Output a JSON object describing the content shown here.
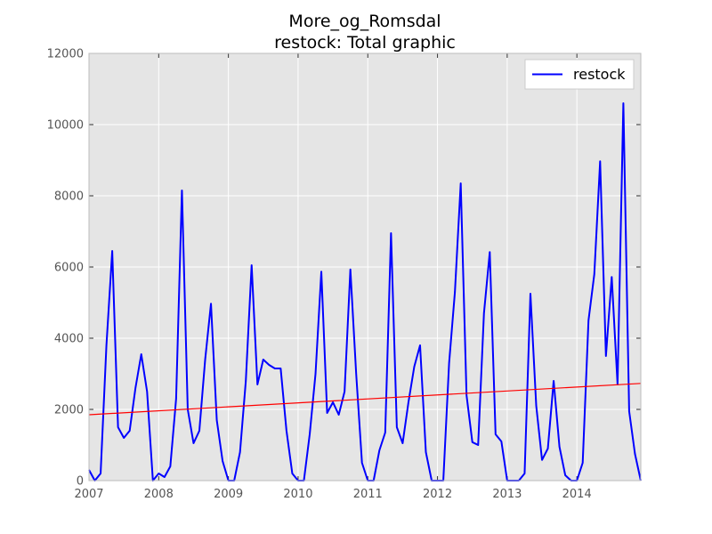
{
  "chart_data": {
    "type": "line",
    "title_lines": [
      "More_og_Romsdal",
      "restock: Total graphic"
    ],
    "xlabel": "",
    "ylabel": "",
    "xlim": [
      2007.0,
      2014.917
    ],
    "ylim": [
      0,
      12000
    ],
    "x_ticks": [
      2007,
      2008,
      2009,
      2010,
      2011,
      2012,
      2013,
      2014
    ],
    "y_ticks": [
      0,
      2000,
      4000,
      6000,
      8000,
      10000,
      12000
    ],
    "grid": true,
    "legend": {
      "position": "top-right",
      "entries": [
        "restock"
      ]
    },
    "colors": {
      "series": "#0000ff",
      "trend": "#ff0000",
      "plot_bg": "#e5e5e5",
      "grid": "#ffffff"
    },
    "series": [
      {
        "name": "restock",
        "start": "2007-01",
        "frequency": "monthly",
        "values": [
          300,
          0,
          200,
          3800,
          6450,
          1500,
          1200,
          1400,
          2600,
          3550,
          2500,
          0,
          200,
          100,
          400,
          2300,
          8150,
          2000,
          1050,
          1400,
          3400,
          4970,
          1700,
          550,
          0,
          0,
          800,
          2800,
          6050,
          2700,
          3400,
          3250,
          3150,
          3150,
          1400,
          200,
          0,
          0,
          1300,
          3000,
          5870,
          1900,
          2200,
          1850,
          2500,
          5930,
          3000,
          500,
          0,
          0,
          850,
          1350,
          6950,
          1500,
          1050,
          2200,
          3200,
          3800,
          800,
          0,
          0,
          0,
          3300,
          5300,
          8350,
          2400,
          1080,
          1000,
          4700,
          6420,
          1300,
          1100,
          0,
          0,
          0,
          200,
          5250,
          2100,
          580,
          900,
          2800,
          950,
          150,
          0,
          0,
          500,
          4500,
          5800,
          8970,
          3500,
          5720,
          2700,
          10600,
          1950,
          750,
          0
        ]
      },
      {
        "trend_line": true,
        "x": [
          2007.0,
          2014.917
        ],
        "values": [
          1850,
          2730
        ]
      }
    ]
  }
}
